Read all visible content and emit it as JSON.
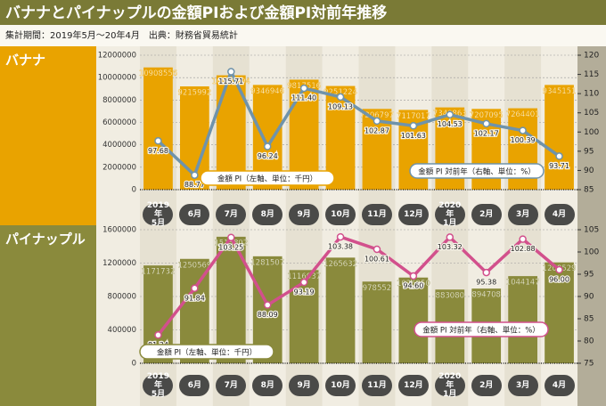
{
  "header": {
    "title": "バナナとパイナップルの金額PIおよび金額PI対前年推移",
    "subtitle": "集計期間：2019年5月～20年4月　出典：財務省貿易統計"
  },
  "chart_data": [
    {
      "type": "combo",
      "title": "バナナ",
      "categories": [
        "2019年\n5月",
        "6月",
        "7月",
        "8月",
        "9月",
        "10月",
        "11月",
        "12月",
        "2020年\n1月",
        "2月",
        "3月",
        "4月"
      ],
      "series": [
        {
          "name": "金額 PI（左軸、単位：千円）",
          "type": "bar",
          "color": "#e9a300",
          "values": [
            10908556,
            9215992,
            10206394,
            9346946,
            9817516,
            9251224,
            7206797,
            7117017,
            7340863,
            7207095,
            7264401,
            9345151
          ]
        },
        {
          "name": "金額 PI 対前年（右軸、単位：%）",
          "type": "line",
          "axis": "y2",
          "color": "#6f93ab",
          "values": [
            97.68,
            88.77,
            115.71,
            96.24,
            111.4,
            109.13,
            102.87,
            101.63,
            104.53,
            102.17,
            100.39,
            93.71
          ],
          "value_labels": [
            "97.68",
            "88.77",
            "115.71",
            "96.24",
            "111.40",
            "109.13",
            "102.87",
            "101.63",
            "104.53",
            "102.17",
            "100.39",
            "93.71"
          ]
        }
      ],
      "ylim": [
        0,
        12000000
      ],
      "yticks": [
        0,
        2000000,
        4000000,
        6000000,
        8000000,
        10000000,
        12000000
      ],
      "y2lim": [
        85,
        120
      ],
      "y2ticks": [
        85,
        90,
        95,
        100,
        105,
        110,
        115,
        120
      ],
      "grid": true
    },
    {
      "type": "combo",
      "title": "パイナップル",
      "categories": [
        "2019年\n5月",
        "6月",
        "7月",
        "8月",
        "9月",
        "10月",
        "11月",
        "12月",
        "2020年\n1月",
        "2月",
        "3月",
        "4月"
      ],
      "series": [
        {
          "name": "金額 PI（左軸、単位：千円）",
          "type": "bar",
          "color": "#8a8a3c",
          "values": [
            1171732,
            1250569,
            1515802,
            1281507,
            1116937,
            1265632,
            978552,
            1026950,
            883080,
            894708,
            1044147,
            1208529
          ]
        },
        {
          "name": "金額 PI 対前年（右軸、単位：%）",
          "type": "line",
          "axis": "y2",
          "color": "#d2508c",
          "values": [
            81.34,
            91.84,
            103.25,
            88.09,
            93.19,
            103.38,
            100.61,
            94.6,
            103.32,
            95.38,
            102.88,
            96
          ],
          "value_labels": [
            "81.34",
            "91.84",
            "103.25",
            "88.09",
            "93.19",
            "103.38",
            "100.61",
            "94.60",
            "103.32",
            "95.38",
            "102.88",
            "96.00"
          ]
        }
      ],
      "ylim": [
        0,
        1600000
      ],
      "yticks": [
        0,
        400000,
        800000,
        1200000,
        1600000
      ],
      "y2lim": [
        75,
        105
      ],
      "y2ticks": [
        75,
        80,
        85,
        90,
        95,
        100,
        105
      ],
      "grid": true
    }
  ]
}
